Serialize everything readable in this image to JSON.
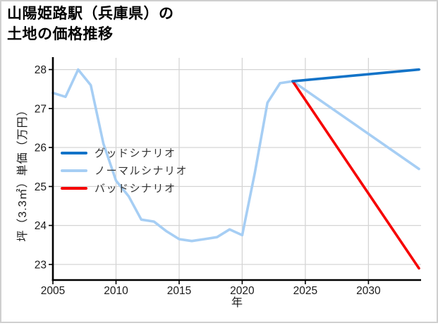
{
  "page": {
    "title_lines": [
      "山陽姫路駅（兵庫県）の",
      "土地の価格推移"
    ]
  },
  "chart_data": {
    "type": "line",
    "title": "山陽姫路駅（兵庫県）の土地の価格推移",
    "xlabel": "年",
    "ylabel": "坪（3.3㎡）単価（万円）",
    "x_ticks": [
      2005,
      2010,
      2015,
      2020,
      2025,
      2030
    ],
    "y_ticks": [
      23,
      24,
      25,
      26,
      27,
      28
    ],
    "xlim": [
      2005,
      2034
    ],
    "ylim": [
      22.6,
      28.3
    ],
    "grid": true,
    "legend_position": "center-left",
    "colors": {
      "good": "#1273c8",
      "normal": "#a6cef4",
      "bad": "#f60000",
      "grid": "#d5d5d5",
      "spine": "#000000"
    },
    "series": [
      {
        "name": "グッドシナリオ",
        "color": "#1273c8",
        "points": [
          [
            2024,
            27.7
          ],
          [
            2034,
            28.0
          ]
        ]
      },
      {
        "name": "ノーマルシナリオ",
        "color": "#a6cef4",
        "points": [
          [
            2005,
            27.4
          ],
          [
            2006,
            27.3
          ],
          [
            2007,
            28.0
          ],
          [
            2008,
            27.6
          ],
          [
            2009,
            26.1
          ],
          [
            2010,
            25.15
          ],
          [
            2011,
            24.75
          ],
          [
            2012,
            24.15
          ],
          [
            2013,
            24.1
          ],
          [
            2014,
            23.85
          ],
          [
            2015,
            23.65
          ],
          [
            2016,
            23.6
          ],
          [
            2017,
            23.65
          ],
          [
            2018,
            23.7
          ],
          [
            2019,
            23.9
          ],
          [
            2020,
            23.75
          ],
          [
            2021,
            25.35
          ],
          [
            2022,
            27.15
          ],
          [
            2023,
            27.65
          ],
          [
            2024,
            27.7
          ],
          [
            2034,
            25.45
          ]
        ]
      },
      {
        "name": "バッドシナリオ",
        "color": "#f60000",
        "points": [
          [
            2024,
            27.7
          ],
          [
            2034,
            22.9
          ]
        ]
      }
    ]
  }
}
